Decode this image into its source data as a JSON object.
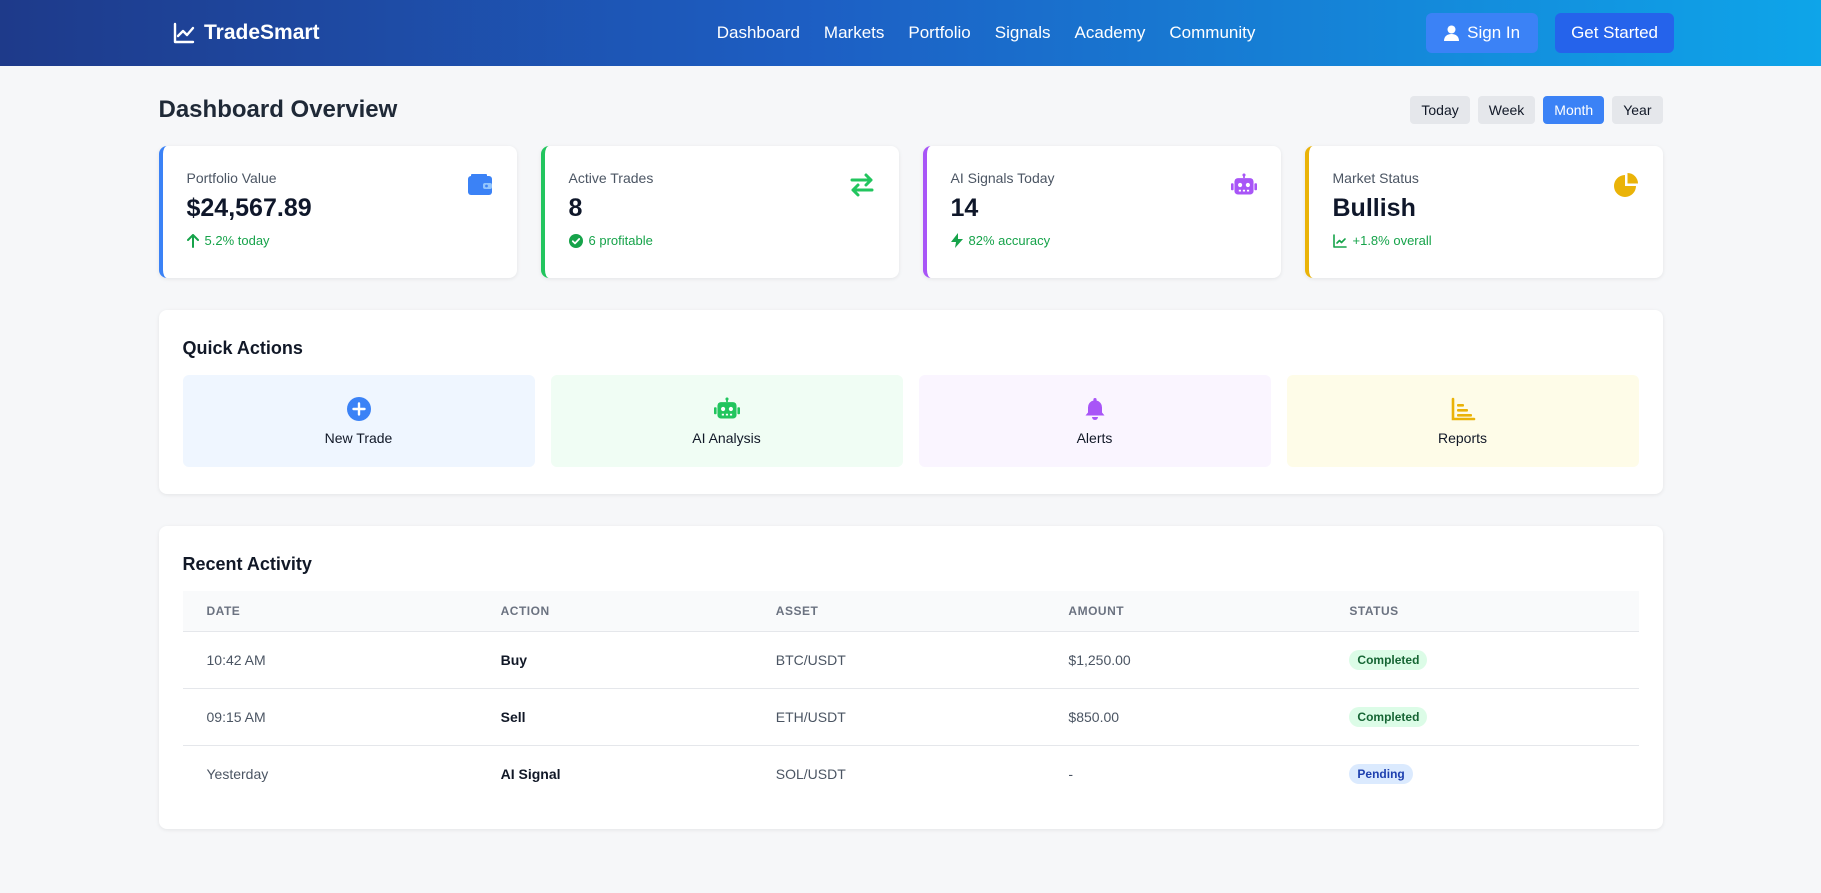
{
  "brand": {
    "name": "TradeSmart",
    "icon": "chart-line-icon"
  },
  "nav": [
    "Dashboard",
    "Markets",
    "Portfolio",
    "Signals",
    "Academy",
    "Community"
  ],
  "header": {
    "sign_in": "Sign In",
    "get_started": "Get Started"
  },
  "page": {
    "title": "Dashboard Overview"
  },
  "range": {
    "options": [
      "Today",
      "Week",
      "Month",
      "Year"
    ],
    "selected": "Month"
  },
  "stats": [
    {
      "label": "Portfolio Value",
      "value": "$24,567.89",
      "sub": "5.2% today",
      "icon": "wallet-icon",
      "sub_icon": "arrow-up-icon",
      "color": "#3b82f6"
    },
    {
      "label": "Active Trades",
      "value": "8",
      "sub": "6 profitable",
      "icon": "exchange-icon",
      "sub_icon": "check-circle-icon",
      "color": "#22c55e"
    },
    {
      "label": "AI Signals Today",
      "value": "14",
      "sub": "82% accuracy",
      "icon": "robot-icon",
      "sub_icon": "bolt-icon",
      "color": "#a855f7"
    },
    {
      "label": "Market Status",
      "value": "Bullish",
      "sub": "+1.8% overall",
      "icon": "pie-chart-icon",
      "sub_icon": "chart-line-icon",
      "color": "#eab308"
    }
  ],
  "quick_actions": {
    "title": "Quick Actions",
    "items": [
      {
        "label": "New Trade",
        "icon": "plus-circle-icon",
        "color": "#3b82f6",
        "bg": "#eff6ff"
      },
      {
        "label": "AI Analysis",
        "icon": "robot-icon",
        "color": "#22c55e",
        "bg": "#f0fdf4"
      },
      {
        "label": "Alerts",
        "icon": "bell-icon",
        "color": "#a855f7",
        "bg": "#faf5ff"
      },
      {
        "label": "Reports",
        "icon": "bar-chart-icon",
        "color": "#eab308",
        "bg": "#fefce8"
      }
    ]
  },
  "recent_activity": {
    "title": "Recent Activity",
    "columns": [
      "DATE",
      "ACTION",
      "ASSET",
      "AMOUNT",
      "STATUS"
    ],
    "rows": [
      {
        "date": "10:42 AM",
        "action": "Buy",
        "asset": "BTC/USDT",
        "amount": "$1,250.00",
        "status": "Completed"
      },
      {
        "date": "09:15 AM",
        "action": "Sell",
        "asset": "ETH/USDT",
        "amount": "$850.00",
        "status": "Completed"
      },
      {
        "date": "Yesterday",
        "action": "AI Signal",
        "asset": "SOL/USDT",
        "amount": "-",
        "status": "Pending"
      }
    ]
  }
}
